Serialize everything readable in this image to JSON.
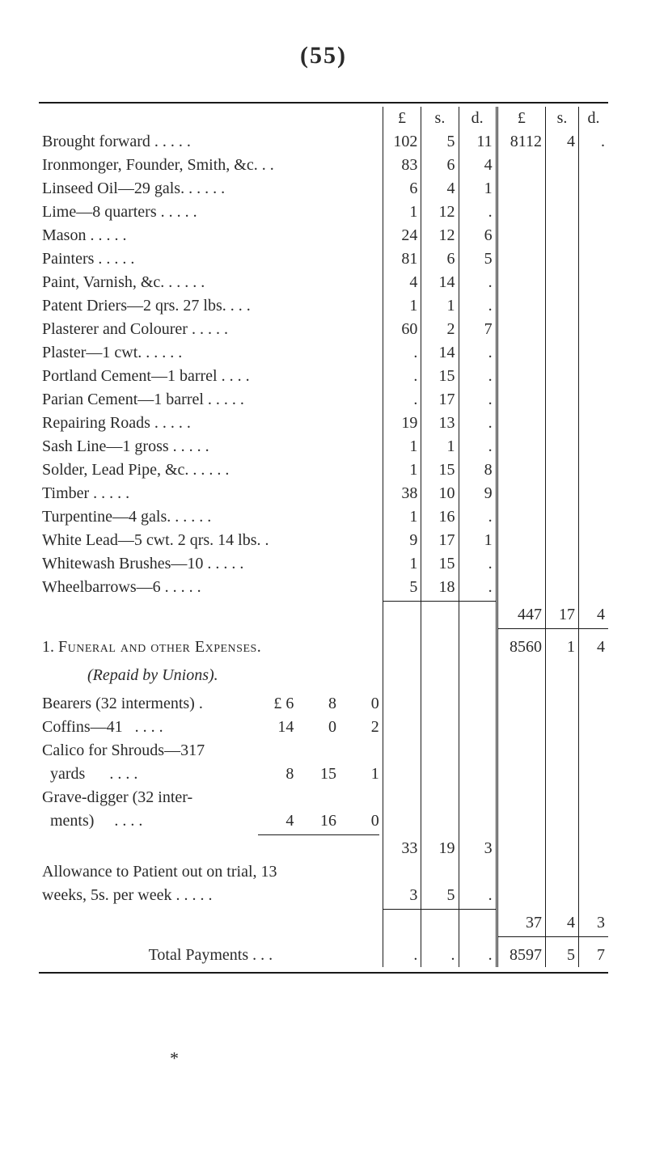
{
  "page_number_display": "(55)",
  "currency_headers": {
    "L": "£",
    "s": "s.",
    "d": "d."
  },
  "opening_balance": {
    "desc": "Brought forward . . . . .",
    "L": "102",
    "s": "5",
    "d": "11",
    "L2": "8112",
    "s2": "4",
    "d2": "."
  },
  "items": [
    {
      "desc": "Ironmonger, Founder, Smith, &c. . .",
      "L": "83",
      "s": "6",
      "d": "4"
    },
    {
      "desc": "Linseed Oil—29 gals.   . . . . .",
      "L": "6",
      "s": "4",
      "d": "1"
    },
    {
      "desc": "Lime—8 quarters        . . . . .",
      "L": "1",
      "s": "12",
      "d": "."
    },
    {
      "desc": "Mason                  . . . . .",
      "L": "24",
      "s": "12",
      "d": "6"
    },
    {
      "desc": "Painters               . . . . .",
      "L": "81",
      "s": "6",
      "d": "5"
    },
    {
      "desc": "Paint, Varnish, &c.    . . . . .",
      "L": "4",
      "s": "14",
      "d": "."
    },
    {
      "desc": "Patent Driers—2 qrs. 27 lbs. . . .",
      "L": "1",
      "s": "1",
      "d": "."
    },
    {
      "desc": "Plasterer and Colourer . . . . .",
      "L": "60",
      "s": "2",
      "d": "7"
    },
    {
      "desc": "Plaster—1 cwt.         . . . . .",
      "L": ".",
      "s": "14",
      "d": "."
    },
    {
      "desc": "Portland Cement—1 barrel . . . .",
      "L": ".",
      "s": "15",
      "d": "."
    },
    {
      "desc": "Parian Cement—1 barrel . . . . .",
      "L": ".",
      "s": "17",
      "d": "."
    },
    {
      "desc": "Repairing Roads        . . . . .",
      "L": "19",
      "s": "13",
      "d": "."
    },
    {
      "desc": "Sash Line—1 gross      . . . . .",
      "L": "1",
      "s": "1",
      "d": "."
    },
    {
      "desc": "Solder, Lead Pipe, &c. . . . . .",
      "L": "1",
      "s": "15",
      "d": "8"
    },
    {
      "desc": "Timber                 . . . . .",
      "L": "38",
      "s": "10",
      "d": "9"
    },
    {
      "desc": "Turpentine—4 gals.     . . . . .",
      "L": "1",
      "s": "16",
      "d": "."
    },
    {
      "desc": "White Lead—5 cwt. 2 qrs. 14 lbs.  .",
      "L": "9",
      "s": "17",
      "d": "1"
    },
    {
      "desc": "Whitewash Brushes—10 . . . . .",
      "L": "1",
      "s": "15",
      "d": "."
    },
    {
      "desc": "Wheelbarrows—6         . . . . .",
      "L": "5",
      "s": "18",
      "d": "."
    }
  ],
  "subtotal1": {
    "L2": "447",
    "s2": "17",
    "d2": "4"
  },
  "section2": {
    "num": "1.",
    "title": "Funeral and other Expenses.",
    "subtitle": "(Repaid by Unions).",
    "right": {
      "L2": "8560",
      "s2": "1",
      "d2": "4"
    }
  },
  "sub_items": [
    {
      "desc": "Bearers (32 interments) .",
      "L": "£ 6",
      "s": "8",
      "d": "0"
    },
    {
      "desc": "Coffins—41   . . . .",
      "L": "14",
      "s": "0",
      "d": "2"
    },
    {
      "desc": "Calico for Shrouds—317",
      "L": "",
      "s": "",
      "d": ""
    },
    {
      "desc": "  yards      . . . .",
      "L": "8",
      "s": "15",
      "d": "1"
    },
    {
      "desc": "Grave-digger (32 inter-",
      "L": "",
      "s": "",
      "d": ""
    },
    {
      "desc": "  ments)     . . . .",
      "L": "4",
      "s": "16",
      "d": "0"
    }
  ],
  "sub_total_row": {
    "L": "33",
    "s": "19",
    "d": "3"
  },
  "allowance": {
    "line1": "Allowance to Patient out on trial, 13",
    "line2": "  weeks, 5s. per week  . . . . .",
    "L": "3",
    "s": "5",
    "d": "."
  },
  "subtotal2": {
    "L2": "37",
    "s2": "4",
    "d2": "3"
  },
  "grand": {
    "label": "Total Payments . . .",
    "L": ".",
    "s": ".",
    "d": ".",
    "L2": "8597",
    "s2": "5",
    "d2": "7"
  },
  "footnote_mark": "*"
}
